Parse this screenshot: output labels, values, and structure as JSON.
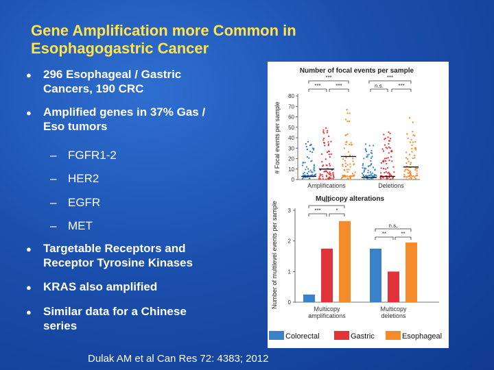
{
  "slide": {
    "title_line1": "Gene Amplification more Common in",
    "title_line2": "Esophagogastric Cancer",
    "citation": "Dulak AM et al  Can Res 72: 4383; 2012"
  },
  "bullets": [
    {
      "line1": "296 Esophageal / Gastric",
      "line2": "Cancers, 190 CRC"
    },
    {
      "line1": "Amplified genes in 37% Gas /",
      "line2": "Eso tumors"
    },
    {
      "line1": "Targetable Receptors and",
      "line2": "Receptor Tyrosine Kinases"
    },
    {
      "line1": "KRAS also amplified",
      "line2": ""
    },
    {
      "line1": "Similar data for a Chinese",
      "line2": "series"
    }
  ],
  "sub_bullets": [
    "FGFR1-2",
    "HER2",
    "EGFR",
    "MET"
  ],
  "colors": {
    "colorectal": "#3a82c8",
    "gastric": "#e2323a",
    "esophageal": "#f58a2a",
    "title": "#ffe44a"
  },
  "chart_data": [
    {
      "type": "scatter",
      "title": "Number of focal events per sample",
      "ylabel": "# Focal events per sample",
      "ylim": [
        0,
        80
      ],
      "yticks": [
        0,
        10,
        20,
        30,
        40,
        50,
        60,
        70,
        80
      ],
      "groups": [
        "Amplifications",
        "Deletions"
      ],
      "series": [
        {
          "group": "Amplifications",
          "color": "#3a82c8",
          "median": 3
        },
        {
          "group": "Amplifications",
          "color": "#e2323a",
          "median": 10
        },
        {
          "group": "Amplifications",
          "color": "#f58a2a",
          "median": 22
        },
        {
          "group": "Deletions",
          "color": "#3a82c8",
          "median": 2
        },
        {
          "group": "Deletions",
          "color": "#e2323a",
          "median": 3
        },
        {
          "group": "Deletions",
          "color": "#f58a2a",
          "median": 12
        }
      ],
      "annotations": [
        "***",
        "***",
        "***",
        "***",
        "***",
        "n.s.",
        "***"
      ]
    },
    {
      "type": "bar",
      "title": "Multicopy alterations",
      "ylabel": "Number of multilevel events per sample",
      "ylim": [
        0,
        3
      ],
      "yticks": [
        0,
        1,
        2,
        3
      ],
      "categories": [
        "Multicopy amplifications",
        "Multicopy deletions"
      ],
      "series": [
        {
          "name": "Colorectal",
          "color": "#3a82c8",
          "values": [
            0.25,
            1.75
          ]
        },
        {
          "name": "Gastric",
          "color": "#e2323a",
          "values": [
            1.75,
            1.0
          ]
        },
        {
          "name": "Esophageal",
          "color": "#f58a2a",
          "values": [
            2.65,
            1.95
          ]
        }
      ],
      "annotations": [
        "***",
        "***",
        "*",
        "n.s.",
        "**",
        "**"
      ]
    }
  ]
}
